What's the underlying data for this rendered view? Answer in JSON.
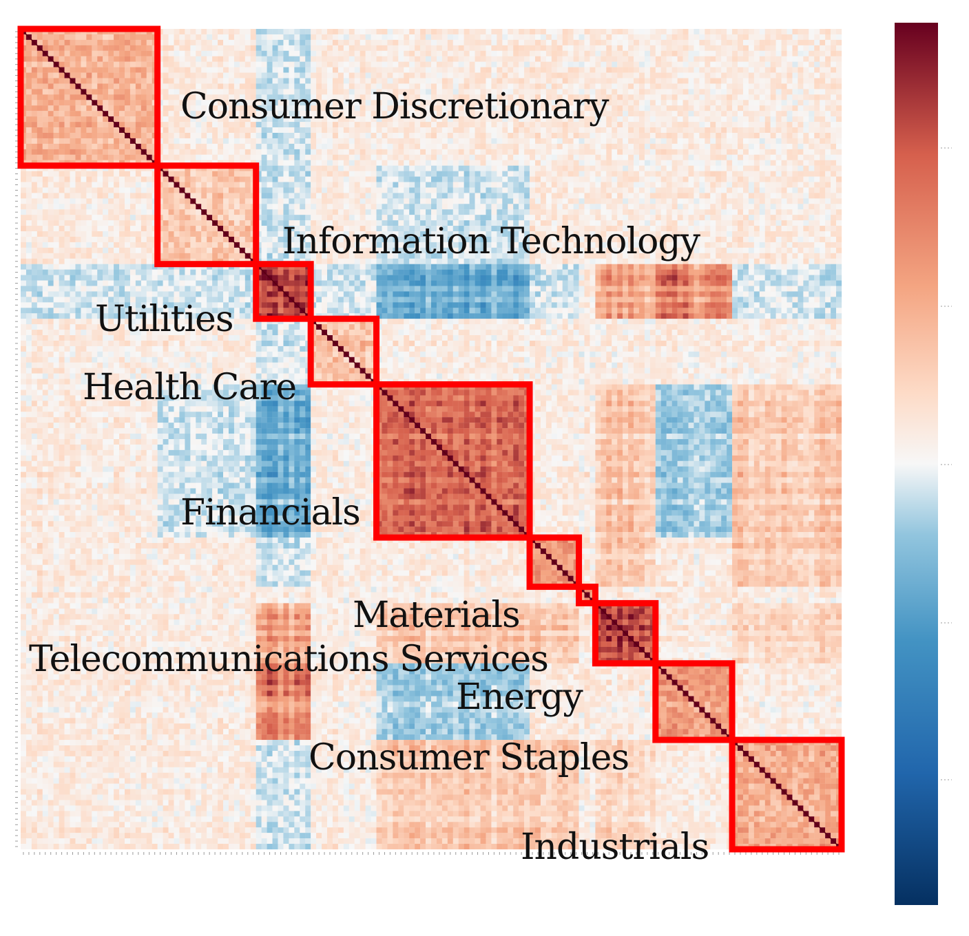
{
  "chart_data": {
    "type": "heatmap",
    "title": "",
    "xlabel": "",
    "ylabel": "",
    "colormap": "RdBu_r",
    "colors": {
      "low": "#053061",
      "mid_low": "#4393c3",
      "mid": "#f7f7f7",
      "mid_high": "#f4a582",
      "high": "#67001f",
      "outline": "#ff0000",
      "diagonal": "#5a0010"
    },
    "matrix_order": "stocks grouped by sector along both axes",
    "colorbar": {
      "orientation": "vertical",
      "tick_labels": []
    },
    "sectors": [
      {
        "name": "Consumer Discretionary",
        "share": 0.165,
        "mean_within_corr": 0.35
      },
      {
        "name": "Information Technology",
        "share": 0.121,
        "mean_within_corr": 0.25
      },
      {
        "name": "Utilities",
        "share": 0.067,
        "mean_within_corr": 0.85
      },
      {
        "name": "Health Care",
        "share": 0.08,
        "mean_within_corr": 0.3
      },
      {
        "name": "Financials",
        "share": 0.19,
        "mean_within_corr": 0.7
      },
      {
        "name": "Materials",
        "share": 0.06,
        "mean_within_corr": 0.45
      },
      {
        "name": "Telecommunications Services",
        "share": 0.018,
        "mean_within_corr": 0.5
      },
      {
        "name": "Energy",
        "share": 0.073,
        "mean_within_corr": 0.85
      },
      {
        "name": "Consumer Staples",
        "share": 0.095,
        "mean_within_corr": 0.45
      },
      {
        "name": "Industrials",
        "share": 0.131,
        "mean_within_corr": 0.4
      }
    ]
  }
}
